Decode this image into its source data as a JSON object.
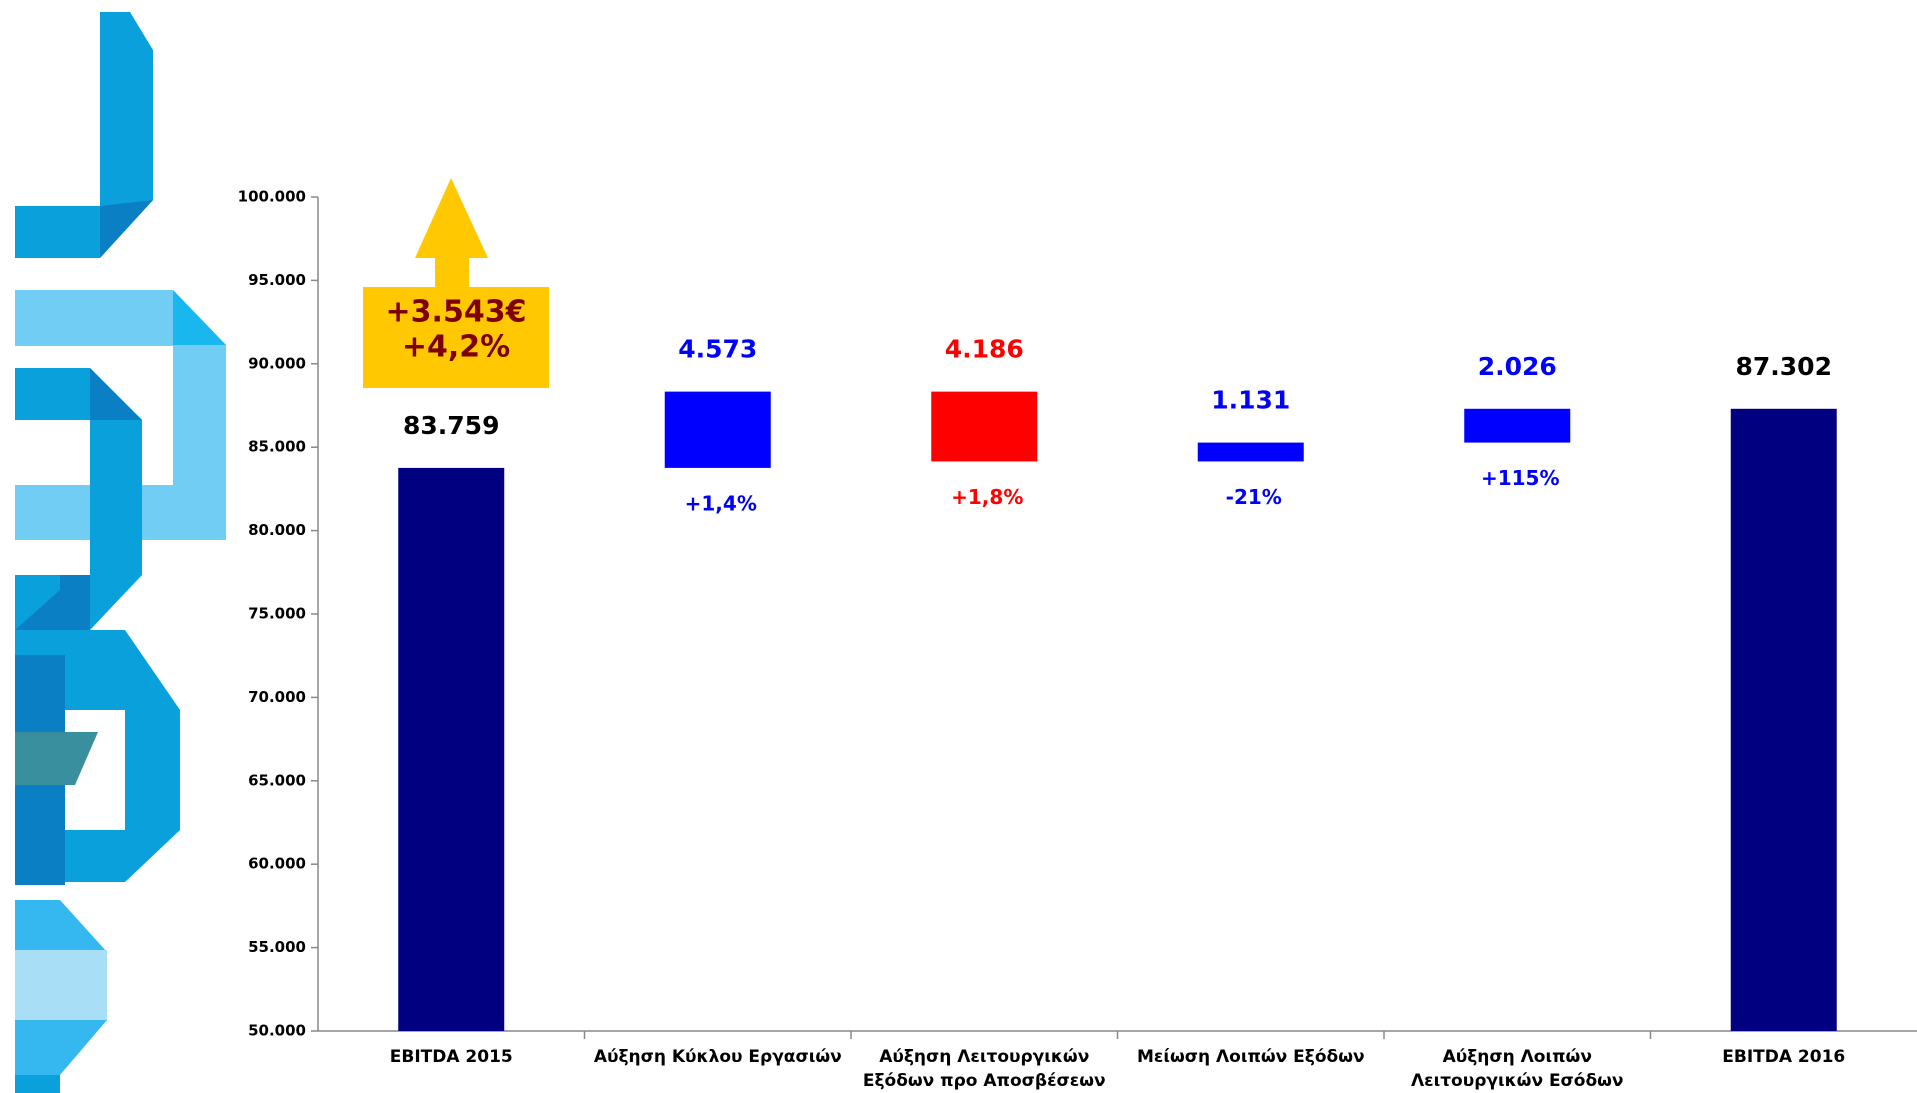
{
  "chart_data": {
    "type": "waterfall",
    "categories": [
      "EBITDA 2015",
      "Αύξηση Κύκλου Εργασιών",
      "Αύξηση Λειτουργικών\nΕξόδων προ Αποσβέσεων",
      "Μείωση Λοιπών Εξόδων",
      "Αύξηση Λοιπών\nΛειτουργικών Εσόδων",
      "EBITDA 2016"
    ],
    "measure": [
      "absolute",
      "relative",
      "relative",
      "relative",
      "relative",
      "absolute"
    ],
    "values": [
      83759,
      4573,
      -4186,
      1131,
      2026,
      87302
    ],
    "value_labels": [
      "83.759",
      "4.573",
      "4.186",
      "1.131",
      "2.026",
      "87.302"
    ],
    "colors": [
      "#000080",
      "#0000ff",
      "#ff0000",
      "#0000ff",
      "#0000ff",
      "#000080"
    ],
    "label_colors": [
      "#000000",
      "#0000ff",
      "#ff0000",
      "#0000ff",
      "#0000ff",
      "#000000"
    ],
    "change_labels": [
      null,
      "+1,4%",
      "+1,8%",
      "-21%",
      "+115%",
      null
    ],
    "annotation": [
      "+3.543€",
      "+4,2%"
    ],
    "ylim": [
      50000,
      100000
    ],
    "yticks": [
      {
        "value": 50000,
        "label": "50.000"
      },
      {
        "value": 55000,
        "label": "55.000"
      },
      {
        "value": 60000,
        "label": "60.000"
      },
      {
        "value": 65000,
        "label": "65.000"
      },
      {
        "value": 70000,
        "label": "70.000"
      },
      {
        "value": 75000,
        "label": "75.000"
      },
      {
        "value": 80000,
        "label": "80.000"
      },
      {
        "value": 85000,
        "label": "85.000"
      },
      {
        "value": 90000,
        "label": "90.000"
      },
      {
        "value": 95000,
        "label": "95.000"
      },
      {
        "value": 100000,
        "label": "100.000"
      }
    ],
    "grid": false
  }
}
